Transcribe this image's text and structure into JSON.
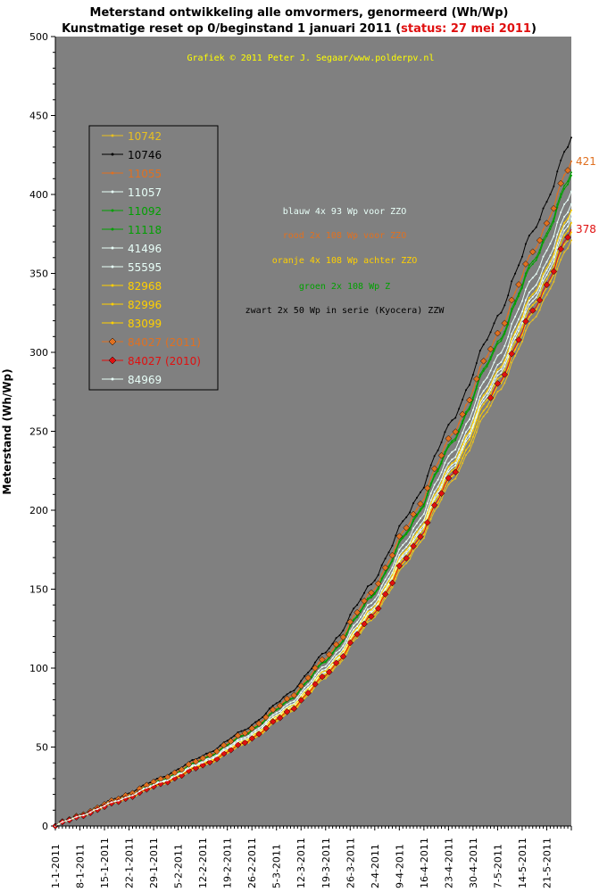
{
  "chart_data": {
    "type": "line",
    "title_line1": "Meterstand ontwikkeling alle omvormers, genormeerd (Wh/Wp)",
    "title_line2_prefix": "Kunstmatige reset op 0/beginstand 1 januari 2011 (",
    "title_status": "status: 27 mei 2011",
    "title_line2_suffix": ")",
    "copyright": "Grafiek © 2011 Peter J. Segaar/www.polderpv.nl",
    "ylabel": "Meterstand (Wh/Wp)",
    "xlabel": "",
    "ylim": [
      0,
      500
    ],
    "y_ticks": [
      0,
      50,
      100,
      150,
      200,
      250,
      300,
      350,
      400,
      450,
      500
    ],
    "x_range_days": [
      0,
      147
    ],
    "x_ticks": [
      "1-1-2011",
      "8-1-2011",
      "15-1-2011",
      "22-1-2011",
      "29-1-2011",
      "5-2-2011",
      "12-2-2011",
      "19-2-2011",
      "26-2-2011",
      "5-3-2011",
      "12-3-2011",
      "19-3-2011",
      "26-3-2011",
      "2-4-2011",
      "9-4-2011",
      "16-4-2011",
      "23-4-2011",
      "30-4-2011",
      "7-5-2011",
      "14-5-2011",
      "21-5-2011"
    ],
    "grid": false,
    "legend_position": "top-left",
    "end_labels": [
      {
        "text": "421",
        "value": 421,
        "color": "#e07020"
      },
      {
        "text": "378",
        "value": 378,
        "color": "#e01010"
      }
    ],
    "annotations": [
      {
        "text": "blauw 4x 93 Wp voor ZZO",
        "color": "#e8fff8"
      },
      {
        "text": "rood 2x 108 Wp voor ZZO",
        "color": "#e07020"
      },
      {
        "text": "oranje 4x 108 Wp achter ZZO",
        "color": "#ffd000"
      },
      {
        "text": "groen 2x 108 Wp  Z",
        "color": "#00a000"
      },
      {
        "text": "zwart 2x 50 Wp in serie (Kyocera) ZZW",
        "color": "#000000"
      }
    ],
    "series": [
      {
        "name": "10742",
        "color": "#e8c020",
        "marker": "dot",
        "final": 371
      },
      {
        "name": "10746",
        "color": "#000000",
        "marker": "dot",
        "final": 436
      },
      {
        "name": "11055",
        "color": "#e07020",
        "marker": "dot",
        "final": 421
      },
      {
        "name": "11057",
        "color": "#e8fff8",
        "marker": "dot",
        "final": 388
      },
      {
        "name": "11092",
        "color": "#00a000",
        "marker": "dot",
        "final": 414
      },
      {
        "name": "11118",
        "color": "#00a000",
        "marker": "dot",
        "final": 412
      },
      {
        "name": "41496",
        "color": "#e8fff8",
        "marker": "dot",
        "final": 385
      },
      {
        "name": "55595",
        "color": "#e8fff8",
        "marker": "dot",
        "final": 402
      },
      {
        "name": "82968",
        "color": "#ffd000",
        "marker": "dot",
        "final": 376
      },
      {
        "name": "82996",
        "color": "#ffd000",
        "marker": "dot",
        "final": 382
      },
      {
        "name": "83099",
        "color": "#ffd000",
        "marker": "dot",
        "final": 390
      },
      {
        "name": "84027 (2011)",
        "color": "#e07020",
        "marker": "diamond",
        "final": 421
      },
      {
        "name": "84027 (2010)",
        "color": "#e01010",
        "marker": "diamond",
        "final": 378,
        "gap": [
          115,
          124
        ]
      },
      {
        "name": "84969",
        "color": "#e8fff8",
        "marker": "dot",
        "final": 394
      }
    ]
  }
}
